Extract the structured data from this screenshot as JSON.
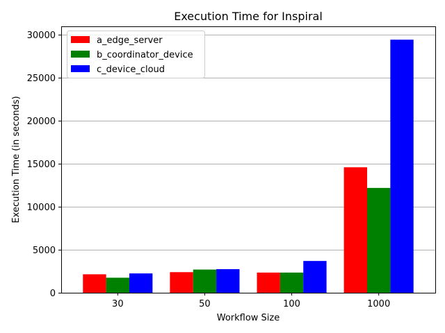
{
  "chart_data": {
    "type": "bar",
    "title": "Execution Time for Inspiral",
    "xlabel": "Workflow Size",
    "ylabel": "Execution Time (in seconds)",
    "categories": [
      "30",
      "50",
      "100",
      "1000"
    ],
    "series": [
      {
        "name": "a_edge_server",
        "color": "#ff0000",
        "values": [
          2150,
          2400,
          2350,
          14600
        ]
      },
      {
        "name": "b_coordinator_device",
        "color": "#008000",
        "values": [
          1750,
          2700,
          2350,
          12200
        ]
      },
      {
        "name": "c_device_cloud",
        "color": "#0000ff",
        "values": [
          2250,
          2750,
          3700,
          29450
        ]
      }
    ],
    "ylim": [
      0,
      31000
    ],
    "yticks": [
      0,
      5000,
      10000,
      15000,
      20000,
      25000,
      30000
    ],
    "grid": "y",
    "legend_position": "top-left"
  }
}
